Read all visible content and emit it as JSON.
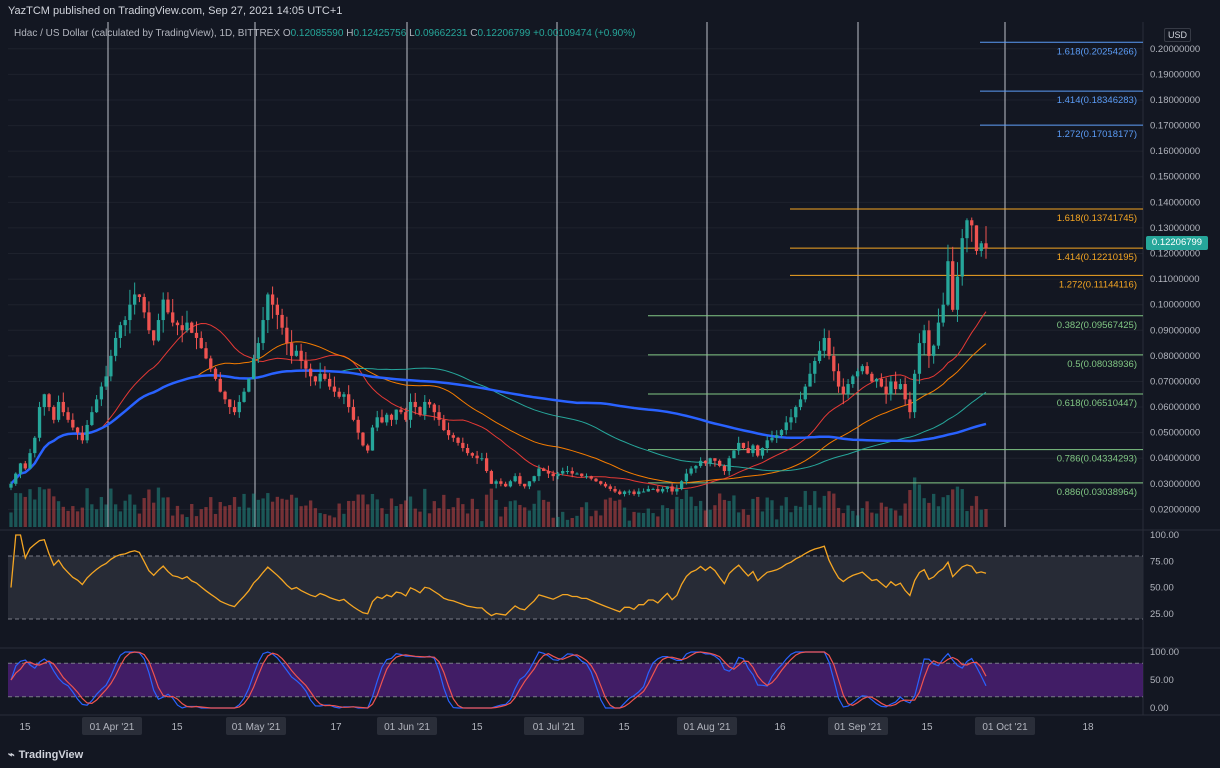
{
  "header": {
    "published": "YazTCM published on TradingView.com, Sep 27, 2021 14:05 UTC+1",
    "symbol": "Hdac / US Dollar (calculated by TradingView), 1D, BITTREX",
    "o_label": "O",
    "o": "0.12085590",
    "h_label": "H",
    "h": "0.12425756",
    "l_label": "L",
    "l": "0.09662231",
    "c_label": "C",
    "c": "0.12206799",
    "change": "+0.00109474 (+0.90%)"
  },
  "price_axis": {
    "unit_label": "USD",
    "current_price": "0.12206799",
    "ticks": [
      "0.02000000",
      "0.03000000",
      "0.04000000",
      "0.05000000",
      "0.06000000",
      "0.07000000",
      "0.08000000",
      "0.09000000",
      "0.10000000",
      "0.11000000",
      "0.12000000",
      "0.13000000",
      "0.14000000",
      "0.15000000",
      "0.16000000",
      "0.17000000",
      "0.18000000",
      "0.19000000",
      "0.20000000"
    ]
  },
  "time_axis": {
    "labels": [
      "15",
      "01 Apr '21",
      "15",
      "01 May '21",
      "17",
      "01 Jun '21",
      "15",
      "01 Jul '21",
      "15",
      "01 Aug '21",
      "16",
      "01 Sep '21",
      "15",
      "01 Oct '21",
      "18"
    ]
  },
  "fib_levels": [
    {
      "label": "1.618(0.20254266)",
      "value": 0.20254266,
      "color": "#5b9cf6"
    },
    {
      "label": "1.414(0.18346283)",
      "value": 0.18346283,
      "color": "#5b9cf6"
    },
    {
      "label": "1.272(0.17018177)",
      "value": 0.17018177,
      "color": "#5b9cf6"
    },
    {
      "label": "1.618(0.13741745)",
      "value": 0.13741745,
      "color": "#f5a623"
    },
    {
      "label": "1.414(0.12210195)",
      "value": 0.12210195,
      "color": "#f5a623"
    },
    {
      "label": "1.272(0.11144116)",
      "value": 0.11144116,
      "color": "#f5a623"
    },
    {
      "label": "0.382(0.09567425)",
      "value": 0.09567425,
      "color": "#81c784"
    },
    {
      "label": "0.5(0.08038936)",
      "value": 0.08038936,
      "color": "#81c784"
    },
    {
      "label": "0.618(0.06510447)",
      "value": 0.06510447,
      "color": "#81c784"
    },
    {
      "label": "0.786(0.04334293)",
      "value": 0.04334293,
      "color": "#81c784"
    },
    {
      "label": "0.886(0.03038964)",
      "value": 0.03038964,
      "color": "#81c784"
    }
  ],
  "rsi_axis": {
    "ticks": [
      "100.00",
      "75.00",
      "50.00",
      "25.00"
    ]
  },
  "stoch_axis": {
    "ticks": [
      "100.00",
      "50.00",
      "0.00"
    ]
  },
  "colors": {
    "up": "#26a69a",
    "down": "#ef5350",
    "ma_fast": "#e53935",
    "ma_mid": "#f57c00",
    "ma_slow": "#26a69a",
    "ma_200": "#2962ff",
    "rsi": "#f5a623",
    "stoch_k": "#2962ff",
    "stoch_d": "#ef5350"
  },
  "chart_data": {
    "type": "candlestick",
    "x_range": [
      "2021-03-10",
      "2021-09-27"
    ],
    "y_range": [
      0.01,
      0.205
    ],
    "close": [
      0.03,
      0.034,
      0.038,
      0.036,
      0.042,
      0.048,
      0.06,
      0.065,
      0.06,
      0.055,
      0.062,
      0.058,
      0.055,
      0.052,
      0.05,
      0.047,
      0.053,
      0.058,
      0.063,
      0.068,
      0.072,
      0.08,
      0.087,
      0.092,
      0.094,
      0.1,
      0.104,
      0.103,
      0.097,
      0.09,
      0.086,
      0.094,
      0.102,
      0.097,
      0.093,
      0.092,
      0.09,
      0.093,
      0.089,
      0.087,
      0.083,
      0.079,
      0.075,
      0.071,
      0.066,
      0.063,
      0.06,
      0.058,
      0.062,
      0.066,
      0.071,
      0.079,
      0.085,
      0.094,
      0.104,
      0.1,
      0.096,
      0.091,
      0.085,
      0.08,
      0.082,
      0.078,
      0.075,
      0.072,
      0.07,
      0.073,
      0.071,
      0.068,
      0.066,
      0.064,
      0.065,
      0.06,
      0.055,
      0.05,
      0.045,
      0.043,
      0.052,
      0.056,
      0.054,
      0.057,
      0.055,
      0.059,
      0.058,
      0.055,
      0.062,
      0.06,
      0.057,
      0.062,
      0.061,
      0.058,
      0.055,
      0.051,
      0.049,
      0.048,
      0.046,
      0.044,
      0.042,
      0.041,
      0.04,
      0.04,
      0.035,
      0.03,
      0.031,
      0.03,
      0.029,
      0.031,
      0.033,
      0.03,
      0.029,
      0.031,
      0.033,
      0.036,
      0.035,
      0.034,
      0.033,
      0.034,
      0.035,
      0.035,
      0.034,
      0.034,
      0.033,
      0.033,
      0.032,
      0.031,
      0.03,
      0.029,
      0.028,
      0.027,
      0.026,
      0.027,
      0.027,
      0.026,
      0.027,
      0.027,
      0.028,
      0.028,
      0.027,
      0.028,
      0.029,
      0.027,
      0.028,
      0.031,
      0.034,
      0.036,
      0.037,
      0.039,
      0.038,
      0.04,
      0.039,
      0.037,
      0.035,
      0.04,
      0.043,
      0.046,
      0.044,
      0.042,
      0.045,
      0.041,
      0.044,
      0.047,
      0.048,
      0.049,
      0.051,
      0.054,
      0.056,
      0.06,
      0.063,
      0.068,
      0.073,
      0.078,
      0.082,
      0.087,
      0.08,
      0.074,
      0.068,
      0.065,
      0.069,
      0.072,
      0.074,
      0.076,
      0.073,
      0.07,
      0.071,
      0.068,
      0.065,
      0.07,
      0.067,
      0.069,
      0.063,
      0.058,
      0.073,
      0.085,
      0.09,
      0.08,
      0.084,
      0.093,
      0.1,
      0.117,
      0.098,
      0.111,
      0.126,
      0.133,
      0.131,
      0.121,
      0.124,
      0.122
    ],
    "series_names": [
      "Hdac/USD",
      "MA fast",
      "MA mid",
      "MA slow",
      "MA 200",
      "RSI",
      "Stoch RSI %K",
      "Stoch RSI %D"
    ]
  }
}
